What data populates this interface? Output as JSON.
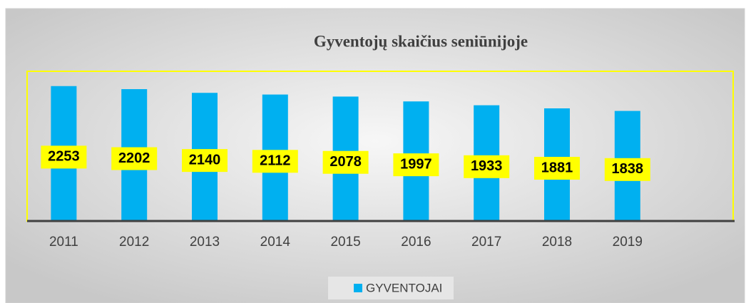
{
  "chart_data": {
    "type": "bar",
    "title": "Gyventojų skaičius seniūnijoje",
    "categories": [
      "2011",
      "2012",
      "2013",
      "2014",
      "2015",
      "2016",
      "2017",
      "2018",
      "2019"
    ],
    "series": [
      {
        "name": "GYVENTOJAI",
        "color": "#00b0f0",
        "values": [
          2253,
          2202,
          2140,
          2112,
          2078,
          1997,
          1933,
          1881,
          1838
        ]
      }
    ],
    "ylim": [
      0,
      2500
    ],
    "legend": "bottom"
  }
}
